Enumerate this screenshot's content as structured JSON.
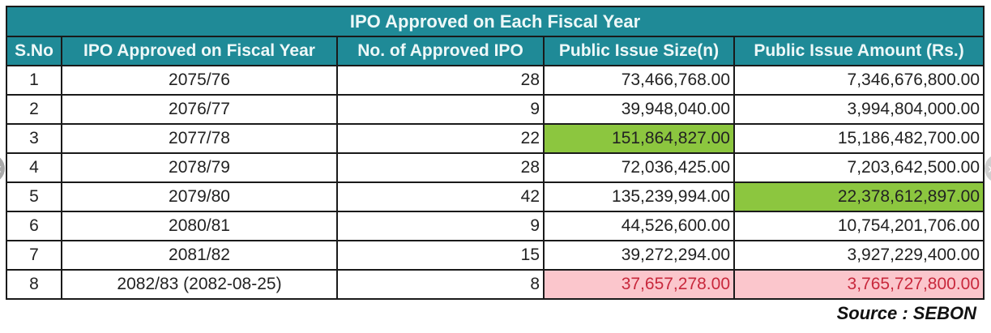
{
  "table": {
    "title": "IPO Approved on Each Fiscal Year",
    "headers": [
      "S.No",
      "IPO Approved on Fiscal Year",
      "No. of Approved IPO",
      "Public Issue Size(n)",
      "Public Issue Amount (Rs.)"
    ],
    "rows": [
      {
        "sno": "1",
        "fy": "2075/76",
        "count": "28",
        "size": "73,466,768.00",
        "amount": "7,346,676,800.00"
      },
      {
        "sno": "2",
        "fy": "2076/77",
        "count": "9",
        "size": "39,948,040.00",
        "amount": "3,994,804,000.00"
      },
      {
        "sno": "3",
        "fy": "2077/78",
        "count": "22",
        "size": "151,864,827.00",
        "amount": "15,186,482,700.00"
      },
      {
        "sno": "4",
        "fy": "2078/79",
        "count": "28",
        "size": "72,036,425.00",
        "amount": "7,203,642,500.00"
      },
      {
        "sno": "5",
        "fy": "2079/80",
        "count": "42",
        "size": "135,239,994.00",
        "amount": "22,378,612,897.00"
      },
      {
        "sno": "6",
        "fy": "2080/81",
        "count": "9",
        "size": "44,526,600.00",
        "amount": "10,754,201,706.00"
      },
      {
        "sno": "7",
        "fy": "2081/82",
        "count": "15",
        "size": "39,272,294.00",
        "amount": "3,927,229,400.00"
      },
      {
        "sno": "8",
        "fy": "2082/83 (2082-08-25)",
        "count": "8",
        "size": "37,657,278.00",
        "amount": "3,765,727,800.00"
      }
    ]
  },
  "source": "Source : SEBON",
  "nav": {
    "prev": "‹",
    "next": "›"
  },
  "colors": {
    "header": "#1f8a97",
    "highlight_max": "#8cc63f",
    "highlight_current": "#fbc6cc",
    "current_text": "#c8283c"
  }
}
